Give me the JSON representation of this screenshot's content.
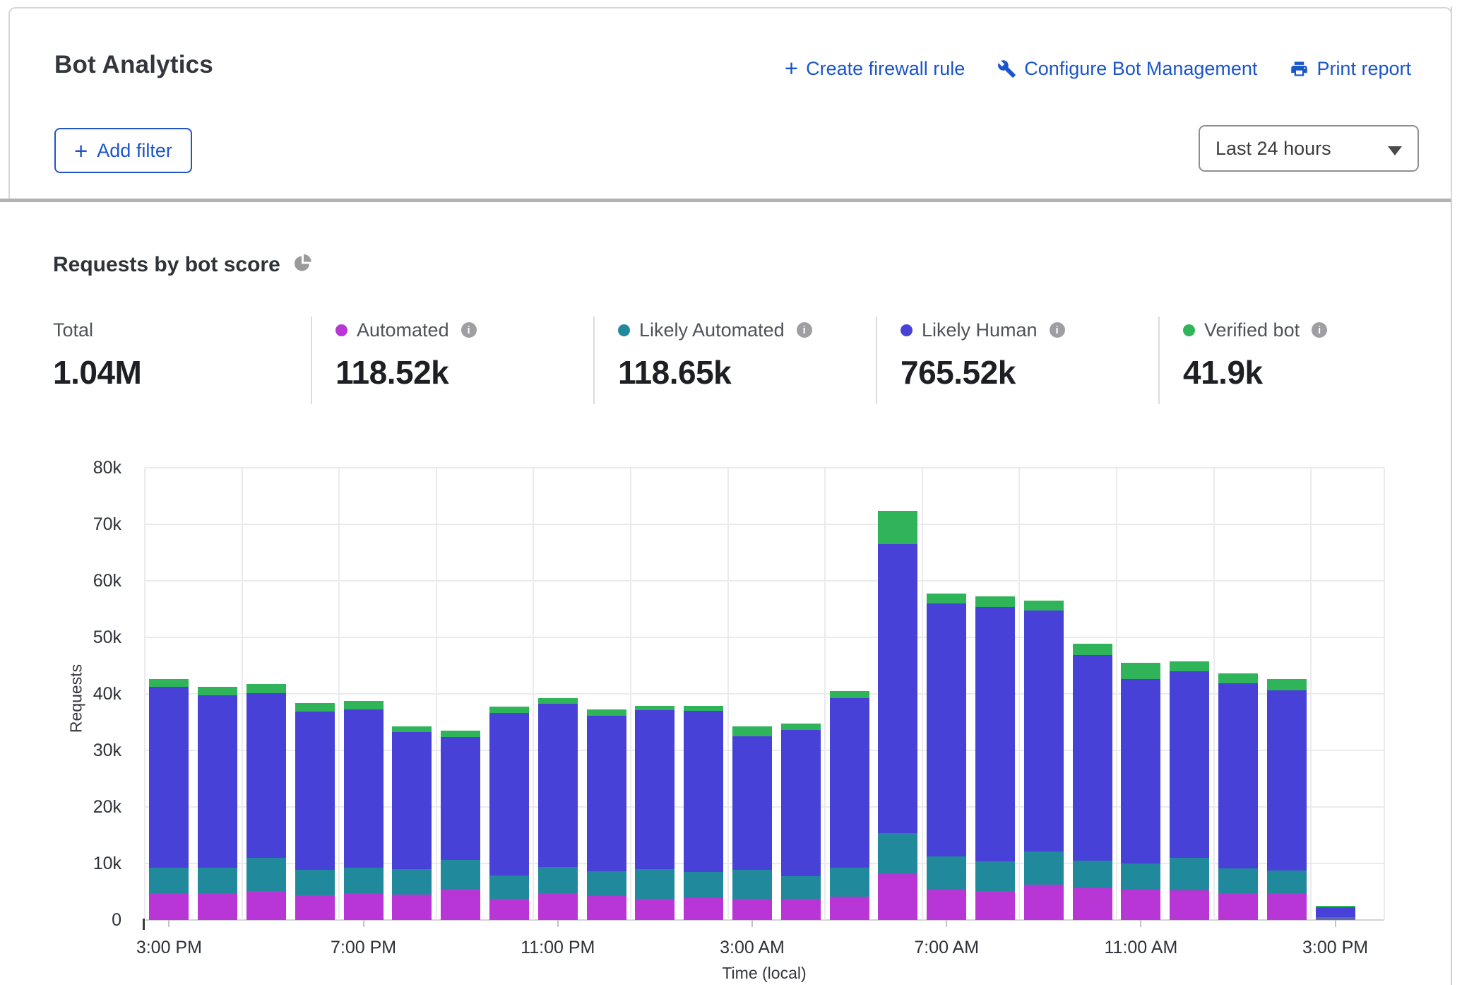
{
  "header": {
    "title": "Bot Analytics",
    "actions": [
      {
        "key": "create-firewall-rule",
        "icon": "plus-icon",
        "label": "Create firewall rule"
      },
      {
        "key": "configure-bot-management",
        "icon": "wrench-icon",
        "label": "Configure Bot Management"
      },
      {
        "key": "print-report",
        "icon": "printer-icon",
        "label": "Print report"
      }
    ],
    "add_filter_label": "Add filter",
    "time_range": "Last 24 hours"
  },
  "section": {
    "title": "Requests by bot score"
  },
  "colors": {
    "link_blue": "#1b55c9",
    "automated": "#b835d6",
    "likely_automated": "#21899c",
    "likely_human": "#4741d8",
    "verified_bot": "#2fb45a"
  },
  "stats": [
    {
      "key": "total",
      "label": "Total",
      "value": "1.04M",
      "color": null,
      "info": false
    },
    {
      "key": "automated",
      "label": "Automated",
      "value": "118.52k",
      "color": "#b835d6",
      "info": true
    },
    {
      "key": "likely-automated",
      "label": "Likely Automated",
      "value": "118.65k",
      "color": "#21899c",
      "info": true
    },
    {
      "key": "likely-human",
      "label": "Likely Human",
      "value": "765.52k",
      "color": "#4741d8",
      "info": true
    },
    {
      "key": "verified-bot",
      "label": "Verified bot",
      "value": "41.9k",
      "color": "#2fb45a",
      "info": true
    }
  ],
  "chart_data": {
    "type": "bar",
    "stacked": true,
    "title": "Requests by bot score",
    "xlabel": "Time (local)",
    "ylabel": "Requests",
    "ylim": [
      0,
      80000
    ],
    "ytick_labels": [
      "0",
      "10k",
      "20k",
      "30k",
      "40k",
      "50k",
      "60k",
      "70k",
      "80k"
    ],
    "x_tick_labels": [
      "3:00 PM",
      "7:00 PM",
      "11:00 PM",
      "3:00 AM",
      "7:00 AM",
      "11:00 AM",
      "3:00 PM"
    ],
    "x_tick_positions": [
      0,
      4,
      8,
      12,
      16,
      20,
      24
    ],
    "grid": true,
    "legend_position": "top-stats-row",
    "categories": [
      "3:00 PM",
      "4:00 PM",
      "5:00 PM",
      "6:00 PM",
      "7:00 PM",
      "8:00 PM",
      "9:00 PM",
      "10:00 PM",
      "11:00 PM",
      "12:00 AM",
      "1:00 AM",
      "2:00 AM",
      "3:00 AM",
      "4:00 AM",
      "5:00 AM",
      "6:00 AM",
      "7:00 AM",
      "8:00 AM",
      "9:00 AM",
      "10:00 AM",
      "11:00 AM",
      "12:00 PM",
      "1:00 PM",
      "2:00 PM",
      "3:00 PM"
    ],
    "series": [
      {
        "name": "Automated",
        "color": "#b835d6",
        "values": [
          4700,
          4800,
          5100,
          4400,
          4700,
          4500,
          5500,
          3700,
          4800,
          4300,
          3800,
          3900,
          3800,
          3700,
          4100,
          8300,
          5400,
          5100,
          6200,
          5600,
          5400,
          5200,
          4800,
          4700,
          300
        ]
      },
      {
        "name": "Likely Automated",
        "color": "#21899c",
        "values": [
          4500,
          4500,
          5900,
          4500,
          4600,
          4500,
          5100,
          4200,
          4600,
          4300,
          5200,
          4600,
          5100,
          4100,
          5100,
          7100,
          5800,
          5300,
          5900,
          4900,
          4600,
          5800,
          4300,
          4100,
          200
        ]
      },
      {
        "name": "Likely Human",
        "color": "#4741d8",
        "values": [
          32100,
          30500,
          29100,
          28000,
          27900,
          24200,
          21800,
          28700,
          28800,
          27500,
          28100,
          28500,
          23600,
          25800,
          30000,
          51100,
          44800,
          45000,
          42600,
          36400,
          32600,
          33000,
          32800,
          31800,
          1800
        ]
      },
      {
        "name": "Verified bot",
        "color": "#2fb45a",
        "values": [
          1300,
          1400,
          1600,
          1500,
          1500,
          1100,
          1100,
          1100,
          1000,
          1100,
          800,
          900,
          1700,
          1100,
          1300,
          5900,
          1800,
          1900,
          1800,
          2000,
          2900,
          1700,
          1700,
          2000,
          200
        ]
      }
    ]
  }
}
